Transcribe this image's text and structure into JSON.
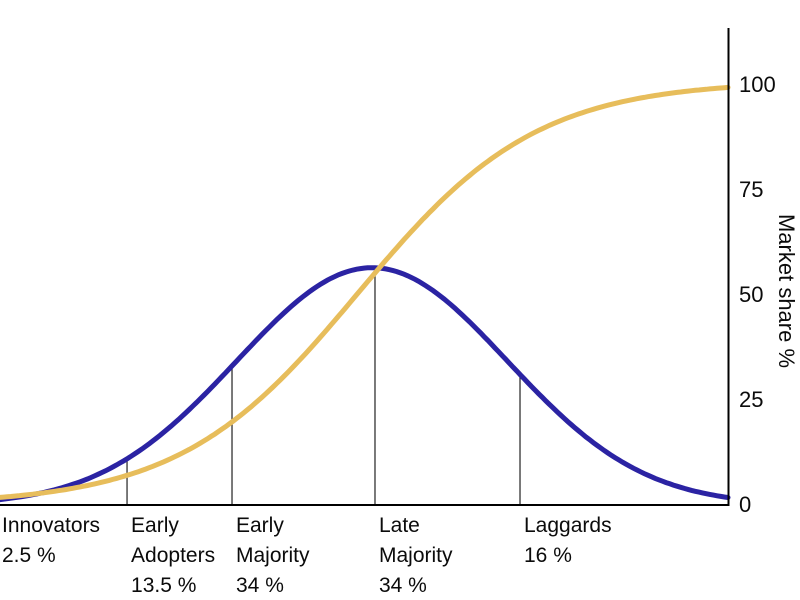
{
  "chart_data": {
    "type": "line",
    "title": "",
    "xlabel": "",
    "ylabel": "Market share %",
    "x_range": [
      0,
      100
    ],
    "ylim": [
      0,
      100
    ],
    "y_ticks": [
      0,
      25,
      50,
      75,
      100
    ],
    "grid": false,
    "legend": "none",
    "axis_color": "#000000",
    "divider_color": "#2a2a2a",
    "series": [
      {
        "name": "adopter-share-bell-curve",
        "shape": "gaussian",
        "color": "#2b23a3",
        "stroke_width": 5,
        "peak_y": 56.5,
        "mean_x": 51.1,
        "sigma_x": 18.6
      },
      {
        "name": "cumulative-market-share-s-curve",
        "shape": "logistic",
        "color": "#e7bd5b",
        "stroke_width": 5,
        "max_y": 101,
        "mid_x": 49.2,
        "steepness": 0.0815
      }
    ],
    "segments": [
      {
        "label": "Innovators",
        "share": "2.5 %",
        "left_boundary_x": null
      },
      {
        "label": "Early Adopters",
        "share": "13.5 %",
        "left_boundary_x": 17.45
      },
      {
        "label": "Early Majority",
        "share": "34 %",
        "left_boundary_x": 31.87
      },
      {
        "label": "Late Majority",
        "share": "34 %",
        "left_boundary_x": 51.51
      },
      {
        "label": "Laggards",
        "share": "16 %",
        "left_boundary_x": 71.43
      }
    ]
  }
}
